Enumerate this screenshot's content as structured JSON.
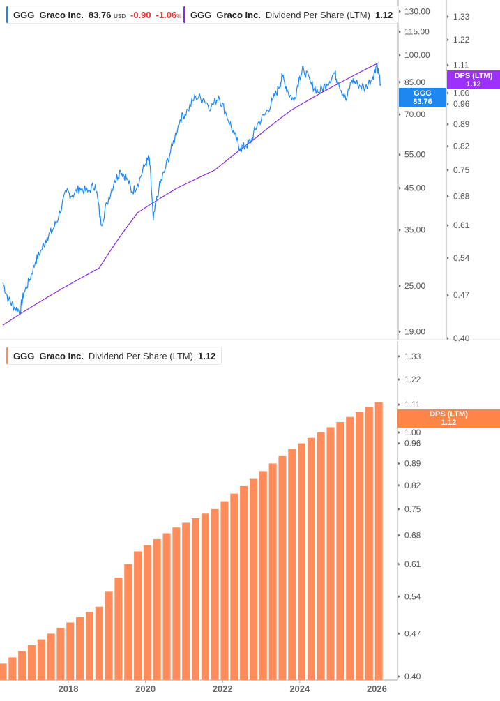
{
  "legend_price": {
    "ticker": "GGG",
    "company": "Graco Inc.",
    "price": "83.76",
    "currency": "USD",
    "change": "-0.90",
    "change_pct": "-1.06",
    "pct_sign": "%"
  },
  "legend_dps_top": {
    "ticker": "GGG",
    "company": "Graco Inc.",
    "metric": "Dividend Per Share (LTM)",
    "value": "1.12"
  },
  "legend_dps_bottom": {
    "ticker": "GGG",
    "company": "Graco Inc.",
    "metric": "Dividend Per Share (LTM)",
    "value": "1.12"
  },
  "tags": {
    "price": {
      "line1": "GGG",
      "line2": "83.76"
    },
    "dps_top": {
      "line1": "DPS (LTM)",
      "line2": "1.12"
    },
    "dps_bottom": {
      "line1": "DPS (LTM)",
      "line2": "1.12"
    }
  },
  "colors": {
    "price": "#1e88f0",
    "dps_line": "#8a2be2",
    "dps_tag": "#9b30ff",
    "bars": "#ff8c5a",
    "bar_tag": "#ff8447"
  },
  "chart_data": [
    {
      "type": "line",
      "scale": "log",
      "price_axis_ticks": [
        "130.00",
        "115.00",
        "100.00",
        "85.00",
        "70.00",
        "55.00",
        "45.00",
        "35.00",
        "25.00",
        "19.00"
      ],
      "dps_axis_ticks": [
        "1.33",
        "1.22",
        "1.11",
        "1.00",
        "0.96",
        "0.89",
        "0.82",
        "0.75",
        "0.68",
        "0.61",
        "0.54",
        "0.47",
        "0.40"
      ],
      "price_series": {
        "name": "GGG",
        "points": [
          [
            2016.3,
            25.5
          ],
          [
            2016.45,
            23
          ],
          [
            2016.6,
            22
          ],
          [
            2016.75,
            21.5
          ],
          [
            2016.85,
            24
          ],
          [
            2017.0,
            26
          ],
          [
            2017.15,
            29
          ],
          [
            2017.3,
            31
          ],
          [
            2017.45,
            33.5
          ],
          [
            2017.6,
            35
          ],
          [
            2017.75,
            38
          ],
          [
            2017.95,
            44
          ],
          [
            2018.1,
            43
          ],
          [
            2018.3,
            45
          ],
          [
            2018.5,
            44
          ],
          [
            2018.7,
            46
          ],
          [
            2018.85,
            36
          ],
          [
            2019.0,
            41
          ],
          [
            2019.2,
            47
          ],
          [
            2019.35,
            50
          ],
          [
            2019.5,
            48
          ],
          [
            2019.65,
            44
          ],
          [
            2019.8,
            46
          ],
          [
            2020.0,
            52
          ],
          [
            2020.1,
            54
          ],
          [
            2020.2,
            37
          ],
          [
            2020.35,
            45
          ],
          [
            2020.5,
            50
          ],
          [
            2020.7,
            58
          ],
          [
            2020.9,
            68
          ],
          [
            2021.1,
            72
          ],
          [
            2021.3,
            78
          ],
          [
            2021.5,
            77
          ],
          [
            2021.7,
            73
          ],
          [
            2021.9,
            78
          ],
          [
            2022.1,
            70
          ],
          [
            2022.3,
            62
          ],
          [
            2022.45,
            57
          ],
          [
            2022.6,
            58
          ],
          [
            2022.75,
            60
          ],
          [
            2022.9,
            66
          ],
          [
            2023.1,
            70
          ],
          [
            2023.3,
            76
          ],
          [
            2023.45,
            82
          ],
          [
            2023.55,
            88
          ],
          [
            2023.7,
            80
          ],
          [
            2023.85,
            76
          ],
          [
            2024.0,
            88
          ],
          [
            2024.1,
            92
          ],
          [
            2024.3,
            84
          ],
          [
            2024.5,
            80
          ],
          [
            2024.7,
            84
          ],
          [
            2024.9,
            90
          ],
          [
            2025.0,
            85
          ],
          [
            2025.2,
            76
          ],
          [
            2025.35,
            86
          ],
          [
            2025.5,
            84
          ],
          [
            2025.7,
            82
          ],
          [
            2025.9,
            88
          ],
          [
            2026.0,
            95
          ],
          [
            2026.1,
            84
          ]
        ]
      },
      "dps_series": {
        "name": "DPS (LTM)"
      }
    },
    {
      "type": "bar",
      "scale": "log",
      "x_ticks": [
        "2018",
        "2020",
        "2022",
        "2024",
        "2026"
      ],
      "y_ticks": [
        "1.33",
        "1.22",
        "1.11",
        "1.00",
        "0.96",
        "0.89",
        "0.82",
        "0.75",
        "0.68",
        "0.61",
        "0.54",
        "0.47",
        "0.40"
      ],
      "ylim": [
        0.4,
        1.33
      ],
      "series": {
        "name": "DPS (LTM)",
        "x": [
          2016.3,
          2016.55,
          2016.8,
          2017.05,
          2017.3,
          2017.55,
          2017.8,
          2018.05,
          2018.3,
          2018.55,
          2018.8,
          2019.05,
          2019.3,
          2019.55,
          2019.8,
          2020.05,
          2020.3,
          2020.55,
          2020.8,
          2021.05,
          2021.3,
          2021.55,
          2021.8,
          2022.05,
          2022.3,
          2022.55,
          2022.8,
          2023.05,
          2023.3,
          2023.55,
          2023.8,
          2024.05,
          2024.3,
          2024.55,
          2024.8,
          2025.05,
          2025.3,
          2025.55,
          2025.8,
          2026.05
        ],
        "values": [
          0.42,
          0.43,
          0.44,
          0.45,
          0.46,
          0.47,
          0.48,
          0.49,
          0.5,
          0.51,
          0.52,
          0.55,
          0.58,
          0.61,
          0.64,
          0.655,
          0.67,
          0.685,
          0.7,
          0.7125,
          0.725,
          0.7375,
          0.75,
          0.7725,
          0.795,
          0.8175,
          0.84,
          0.865,
          0.89,
          0.915,
          0.94,
          0.96,
          0.98,
          1.0,
          1.02,
          1.04,
          1.06,
          1.08,
          1.1,
          1.12
        ]
      }
    }
  ]
}
